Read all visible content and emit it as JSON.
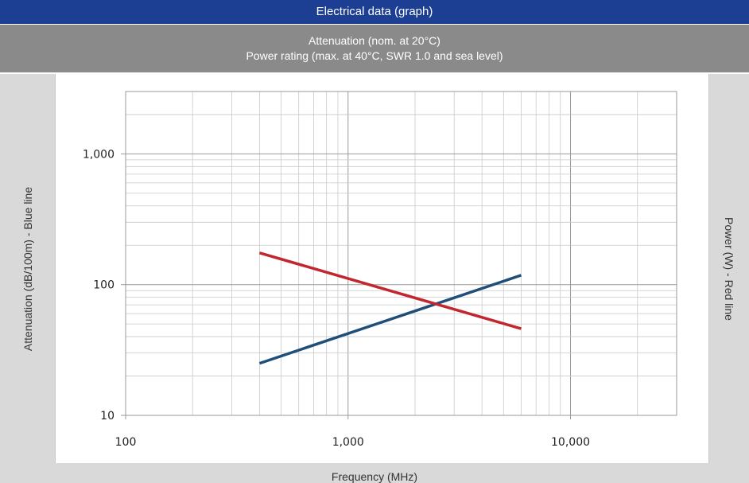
{
  "header": {
    "title": "Electrical data (graph)",
    "subtitle_line1": "Attenuation (nom. at 20°C)",
    "subtitle_line2": "Power rating (max. at 40°C, SWR 1.0 and sea level)"
  },
  "chart_data": {
    "type": "line",
    "title": "Electrical data (graph)",
    "xlabel": "Frequency (MHz)",
    "ylabel": "Attenuation (dB/100m) - Blue line",
    "y2label": "Power (W) - Red line",
    "x_scale": "log",
    "y_scale": "log",
    "xlim": [
      100,
      30000
    ],
    "ylim": [
      10,
      3000
    ],
    "x_ticks": [
      {
        "value": 100,
        "label": "100"
      },
      {
        "value": 1000,
        "label": "1,000"
      },
      {
        "value": 10000,
        "label": "10,000"
      }
    ],
    "y_ticks": [
      {
        "value": 10,
        "label": "10"
      },
      {
        "value": 100,
        "label": "100"
      },
      {
        "value": 1000,
        "label": "1,000"
      }
    ],
    "grid": true,
    "series": [
      {
        "name": "Attenuation (dB/100m)",
        "color": "#1f4e79",
        "x": [
          400,
          6000
        ],
        "y": [
          25,
          118
        ]
      },
      {
        "name": "Power (W)",
        "color": "#c1272d",
        "x": [
          400,
          6000
        ],
        "y": [
          175,
          46
        ]
      }
    ]
  }
}
